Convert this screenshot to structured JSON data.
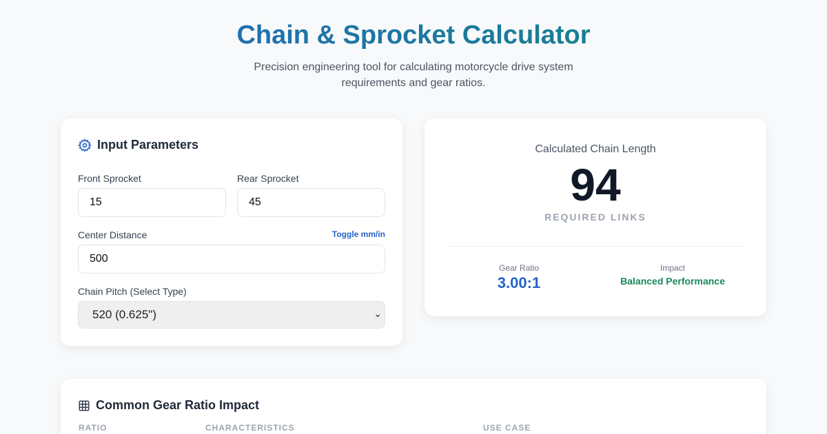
{
  "header": {
    "title": "Chain & Sprocket Calculator",
    "subtitle": "Precision engineering tool for calculating motorcycle drive system requirements and gear ratios."
  },
  "inputs": {
    "title": "Input Parameters",
    "icon": "gear-icon",
    "front_label": "Front Sprocket",
    "front_value": "15",
    "rear_label": "Rear Sprocket",
    "rear_value": "45",
    "center_label": "Center Distance",
    "center_value": "500",
    "toggle_label": "Toggle mm/in",
    "pitch_label": "Chain Pitch (Select Type)",
    "pitch_value": "520 (0.625\")"
  },
  "result": {
    "label": "Calculated Chain Length",
    "value": "94",
    "unit": "REQUIRED LINKS",
    "ratio_label": "Gear Ratio",
    "ratio_value": "3.00:1",
    "impact_label": "Impact",
    "impact_value": "Balanced Performance",
    "colors": {
      "ratio": "#2563c9",
      "impact": "#16895a"
    }
  },
  "table": {
    "title": "Common Gear Ratio Impact",
    "icon": "table-icon",
    "columns": [
      "RATIO",
      "CHARACTERISTICS",
      "USE CASE"
    ]
  }
}
